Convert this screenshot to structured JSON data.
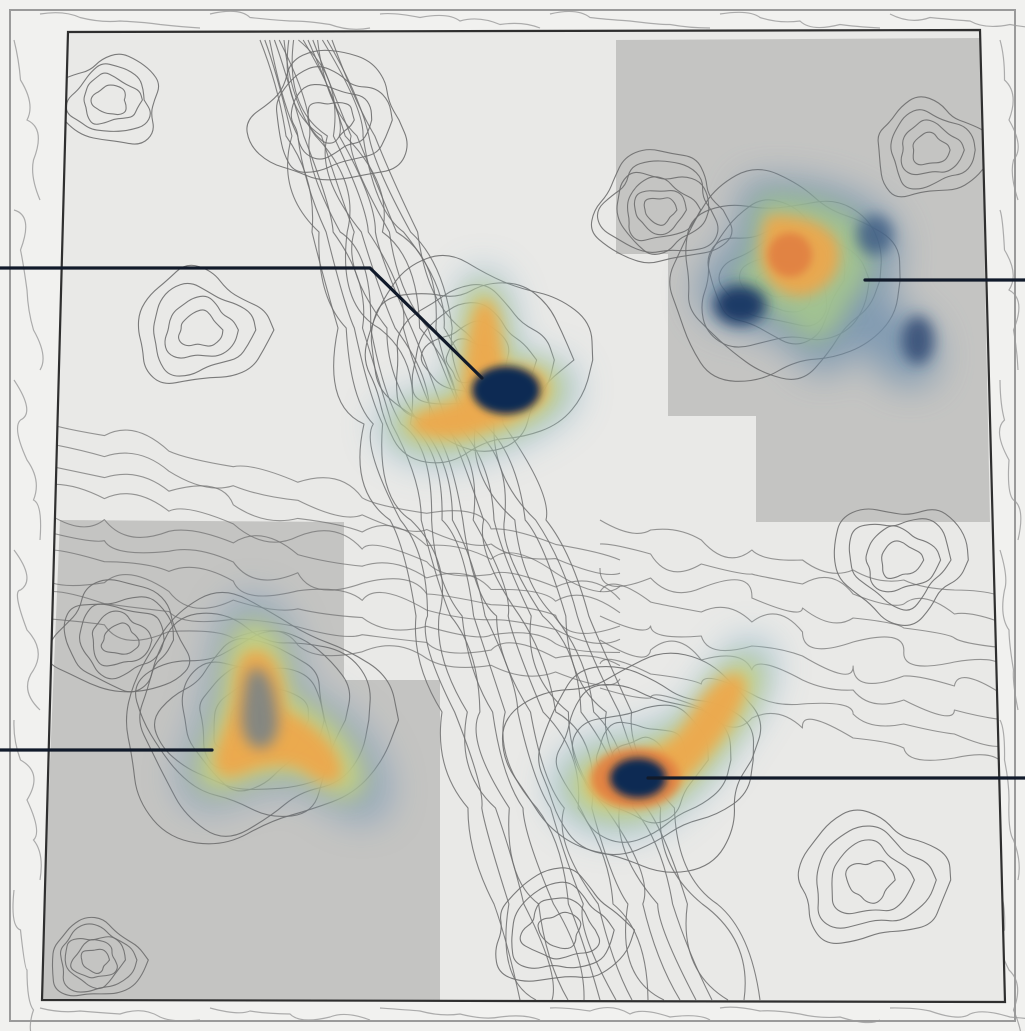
{
  "figure": {
    "kind": "contour map with four heat-density blobs and callout leader lines",
    "text_labels": []
  },
  "colors": {
    "paper": "#f1f1ef",
    "map_fill": "#e9e9e7",
    "shaded_region": "#bdbdbb",
    "contour": "#6e6e6e",
    "border": "#2f2f2f",
    "leader": "#111a2a",
    "heat_low": "#8db4c6",
    "heat_mid": "#c9d77a",
    "heat_high": "#f0a64a",
    "heat_peak": "#e07a3f",
    "heat_core": "#0e2a52"
  },
  "shaded_regions": [
    "top-right",
    "bottom-left"
  ],
  "hotspots": [
    {
      "id": "center",
      "shape": "tri-lobed",
      "has_dark_core": true,
      "callout_side": "left"
    },
    {
      "id": "top-right",
      "shape": "four-lobed",
      "has_dark_core": false,
      "callout_side": "right"
    },
    {
      "id": "bottom-left",
      "shape": "tri-lobed",
      "has_dark_core": false,
      "callout_side": "left"
    },
    {
      "id": "bottom-right",
      "shape": "crescent",
      "has_dark_core": true,
      "callout_side": "right"
    }
  ]
}
